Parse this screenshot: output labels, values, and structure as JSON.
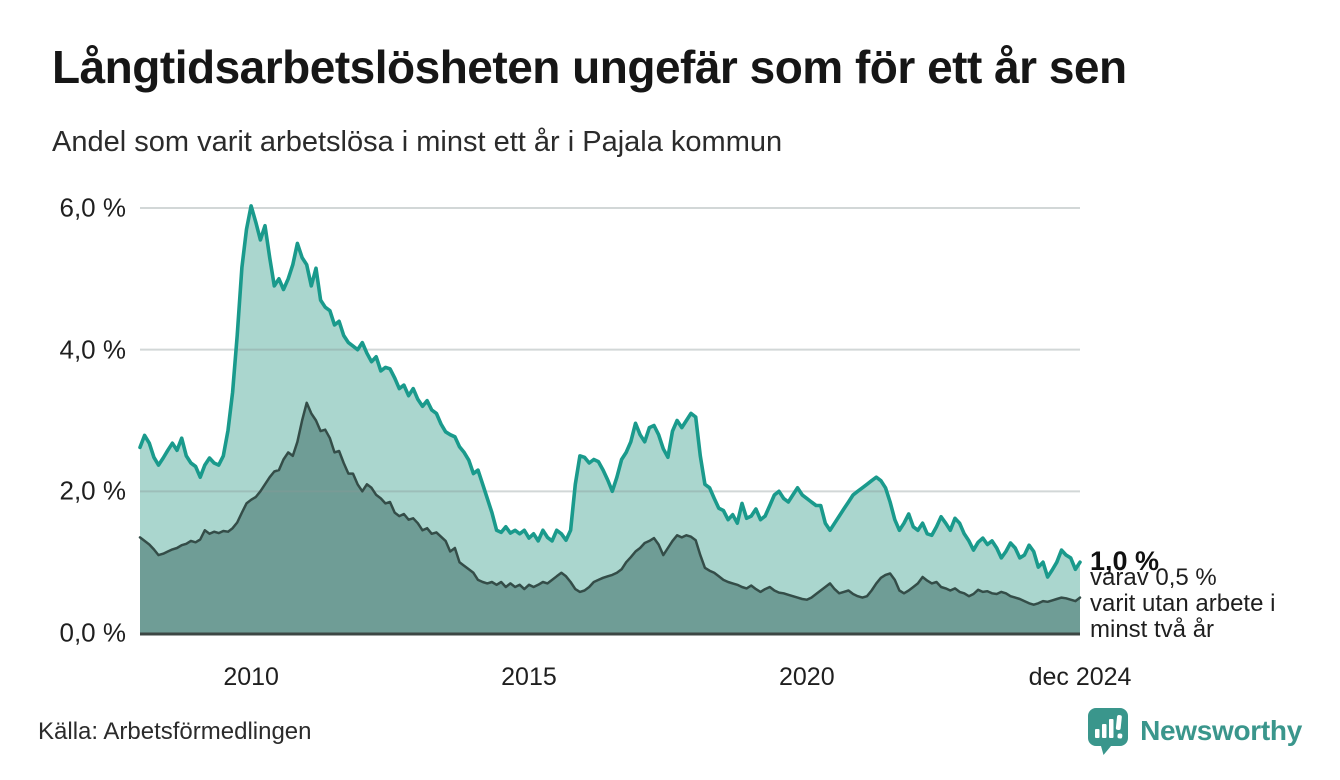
{
  "chart_data": {
    "type": "area",
    "title": "Långtidsarbetslösheten ungefär som för ett år sen",
    "subtitle": "Andel som varit arbetslösa i minst ett år i Pajala kommun",
    "grid": true,
    "ylim": [
      0,
      6
    ],
    "x_start": "2008-01",
    "x_end": "2024-12",
    "y_ticks": [
      {
        "label": "0,0 %",
        "value": 0
      },
      {
        "label": "2,0 %",
        "value": 2
      },
      {
        "label": "4,0 %",
        "value": 4
      },
      {
        "label": "6,0 %",
        "value": 6
      }
    ],
    "x_ticks": [
      {
        "label": "2010",
        "month_index": 24
      },
      {
        "label": "2015",
        "month_index": 84
      },
      {
        "label": "2020",
        "month_index": 144
      },
      {
        "label": "dec 2024",
        "month_index": 203
      }
    ],
    "series": [
      {
        "name": "arbetslösa minst ett år",
        "line_color": "#1a9a8c",
        "fill_color": "#aad6ce",
        "line_width": 3.6,
        "values": [
          2.62,
          2.79,
          2.68,
          2.48,
          2.37,
          2.47,
          2.58,
          2.68,
          2.58,
          2.75,
          2.5,
          2.4,
          2.35,
          2.2,
          2.37,
          2.47,
          2.4,
          2.37,
          2.5,
          2.86,
          3.4,
          4.2,
          5.16,
          5.7,
          6.03,
          5.8,
          5.55,
          5.75,
          5.3,
          4.9,
          5.0,
          4.85,
          5.0,
          5.2,
          5.5,
          5.3,
          5.2,
          4.9,
          5.15,
          4.7,
          4.6,
          4.55,
          4.35,
          4.4,
          4.2,
          4.1,
          4.05,
          4.0,
          4.1,
          3.95,
          3.83,
          3.9,
          3.7,
          3.75,
          3.73,
          3.6,
          3.45,
          3.5,
          3.35,
          3.45,
          3.3,
          3.2,
          3.28,
          3.15,
          3.1,
          2.95,
          2.84,
          2.8,
          2.77,
          2.63,
          2.55,
          2.44,
          2.25,
          2.3,
          2.1,
          1.9,
          1.7,
          1.45,
          1.42,
          1.5,
          1.41,
          1.45,
          1.4,
          1.45,
          1.34,
          1.4,
          1.3,
          1.45,
          1.35,
          1.3,
          1.45,
          1.4,
          1.31,
          1.45,
          2.1,
          2.5,
          2.48,
          2.4,
          2.45,
          2.42,
          2.3,
          2.16,
          2.0,
          2.2,
          2.45,
          2.55,
          2.7,
          2.96,
          2.8,
          2.7,
          2.9,
          2.93,
          2.8,
          2.6,
          2.48,
          2.85,
          3.0,
          2.9,
          3.0,
          3.1,
          3.05,
          2.5,
          2.1,
          2.05,
          1.9,
          1.76,
          1.73,
          1.6,
          1.67,
          1.55,
          1.83,
          1.62,
          1.65,
          1.75,
          1.6,
          1.65,
          1.8,
          1.95,
          2.0,
          1.9,
          1.85,
          1.95,
          2.05,
          1.95,
          1.9,
          1.85,
          1.8,
          1.8,
          1.55,
          1.45,
          1.55,
          1.65,
          1.75,
          1.85,
          1.95,
          2.0,
          2.05,
          2.1,
          2.15,
          2.2,
          2.15,
          2.05,
          1.85,
          1.6,
          1.45,
          1.55,
          1.68,
          1.5,
          1.45,
          1.55,
          1.4,
          1.38,
          1.5,
          1.64,
          1.55,
          1.45,
          1.62,
          1.55,
          1.4,
          1.3,
          1.17,
          1.28,
          1.34,
          1.25,
          1.3,
          1.2,
          1.06,
          1.15,
          1.27,
          1.2,
          1.06,
          1.1,
          1.24,
          1.15,
          0.93,
          1.0,
          0.79,
          0.89,
          1.0,
          1.17,
          1.1,
          1.06,
          0.9,
          1.0
        ]
      },
      {
        "name": "varav utan arbete minst två år",
        "line_color": "#344d48",
        "fill_color": "#6f9d96",
        "line_width": 2.5,
        "values": [
          1.35,
          1.3,
          1.25,
          1.18,
          1.1,
          1.12,
          1.15,
          1.18,
          1.2,
          1.24,
          1.26,
          1.3,
          1.28,
          1.32,
          1.45,
          1.4,
          1.43,
          1.41,
          1.44,
          1.43,
          1.48,
          1.56,
          1.7,
          1.83,
          1.88,
          1.92,
          2.0,
          2.1,
          2.2,
          2.28,
          2.3,
          2.45,
          2.55,
          2.5,
          2.7,
          3.0,
          3.25,
          3.1,
          3.0,
          2.85,
          2.87,
          2.75,
          2.55,
          2.57,
          2.4,
          2.25,
          2.25,
          2.1,
          2.0,
          2.1,
          2.05,
          1.95,
          1.9,
          1.83,
          1.85,
          1.7,
          1.65,
          1.68,
          1.6,
          1.62,
          1.55,
          1.45,
          1.48,
          1.4,
          1.42,
          1.36,
          1.3,
          1.15,
          1.2,
          1.0,
          0.95,
          0.9,
          0.85,
          0.75,
          0.72,
          0.7,
          0.72,
          0.68,
          0.72,
          0.65,
          0.7,
          0.65,
          0.68,
          0.62,
          0.68,
          0.65,
          0.68,
          0.72,
          0.7,
          0.75,
          0.8,
          0.85,
          0.8,
          0.72,
          0.62,
          0.58,
          0.6,
          0.65,
          0.72,
          0.75,
          0.78,
          0.8,
          0.82,
          0.85,
          0.9,
          1.0,
          1.07,
          1.15,
          1.2,
          1.27,
          1.3,
          1.34,
          1.25,
          1.1,
          1.2,
          1.3,
          1.38,
          1.35,
          1.38,
          1.36,
          1.31,
          1.1,
          0.92,
          0.88,
          0.85,
          0.8,
          0.75,
          0.72,
          0.7,
          0.68,
          0.65,
          0.63,
          0.67,
          0.62,
          0.58,
          0.62,
          0.65,
          0.6,
          0.57,
          0.56,
          0.54,
          0.52,
          0.5,
          0.48,
          0.47,
          0.5,
          0.55,
          0.6,
          0.65,
          0.7,
          0.62,
          0.56,
          0.58,
          0.6,
          0.55,
          0.52,
          0.5,
          0.52,
          0.6,
          0.7,
          0.78,
          0.82,
          0.84,
          0.75,
          0.6,
          0.56,
          0.6,
          0.65,
          0.7,
          0.79,
          0.74,
          0.7,
          0.72,
          0.65,
          0.63,
          0.6,
          0.63,
          0.58,
          0.56,
          0.52,
          0.55,
          0.61,
          0.58,
          0.59,
          0.56,
          0.55,
          0.58,
          0.56,
          0.52,
          0.5,
          0.48,
          0.45,
          0.42,
          0.4,
          0.42,
          0.45,
          0.44,
          0.46,
          0.48,
          0.5,
          0.49,
          0.47,
          0.45,
          0.5
        ]
      }
    ],
    "annotation": {
      "value_label": "1,0 %",
      "desc_lines": [
        "varav 0,5 %",
        "varit utan arbete i",
        "minst två år"
      ]
    },
    "colors": {
      "gridline": "#8a9898",
      "baseline": "#3c4744"
    }
  },
  "footer": {
    "source": "Källa: Arbetsförmedlingen",
    "brand": "Newsworthy",
    "brand_color": "#3a968c"
  }
}
